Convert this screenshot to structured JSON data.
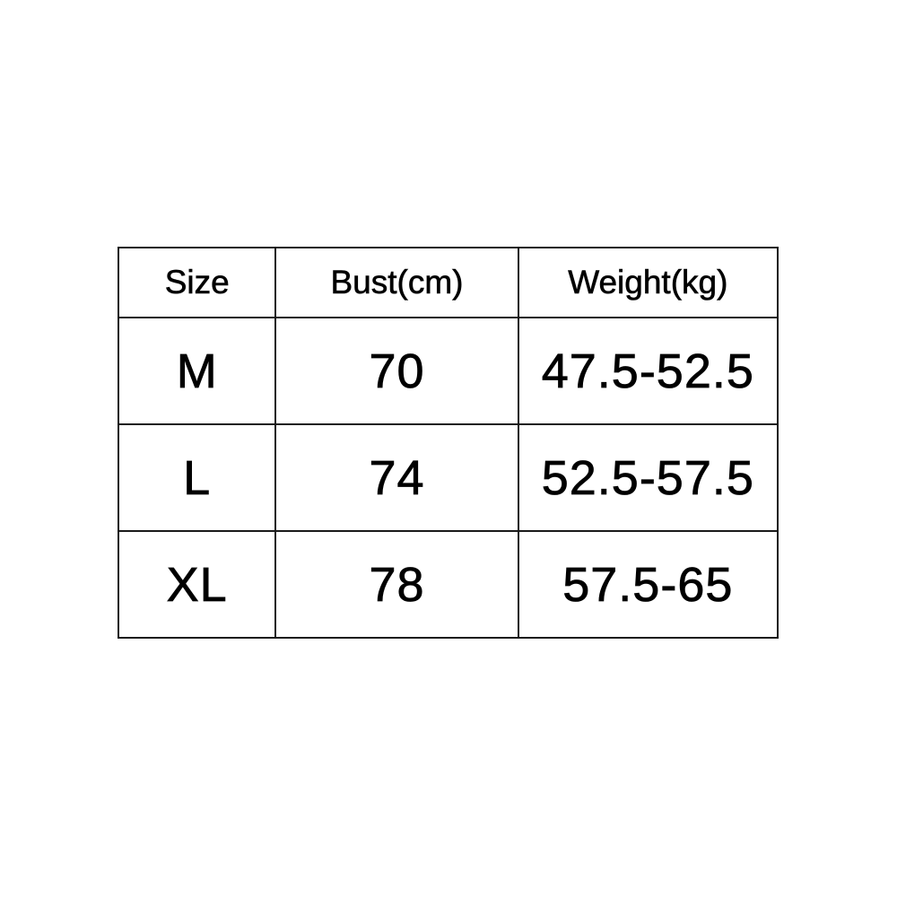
{
  "table": {
    "headers": [
      "Size",
      "Bust(cm)",
      "Weight(kg)"
    ],
    "rows": [
      [
        "M",
        "70",
        "47.5-52.5"
      ],
      [
        "L",
        "74",
        "52.5-57.5"
      ],
      [
        "XL",
        "78",
        "57.5-65"
      ]
    ]
  }
}
